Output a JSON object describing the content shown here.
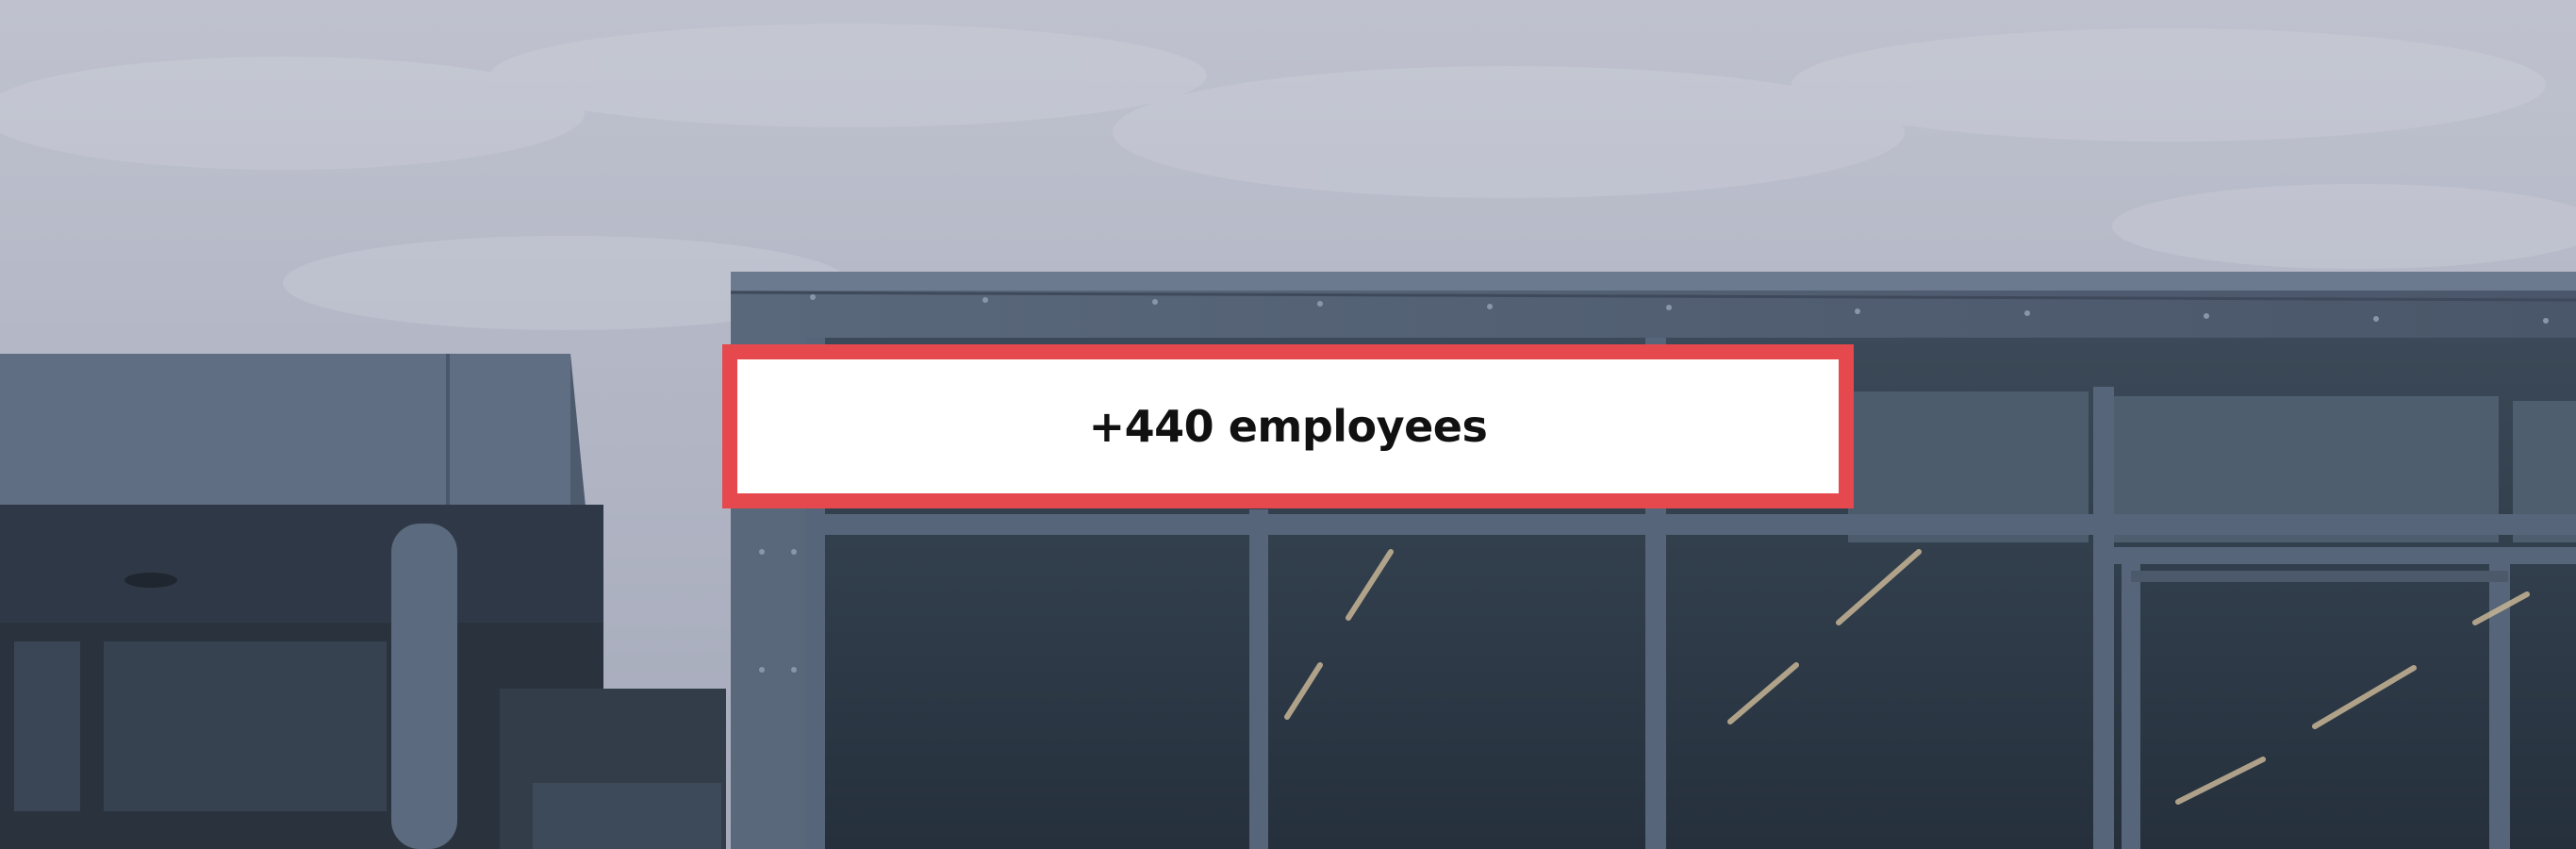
{
  "hero": {
    "image_icon": "office-building-photo",
    "stat_text": "+440 employees"
  },
  "colors": {
    "accent": "#e5484d",
    "box_background": "#ffffff",
    "text": "#111111",
    "sky": "#aeb2c1",
    "building": "#566477",
    "glass": "#2e3a48"
  }
}
